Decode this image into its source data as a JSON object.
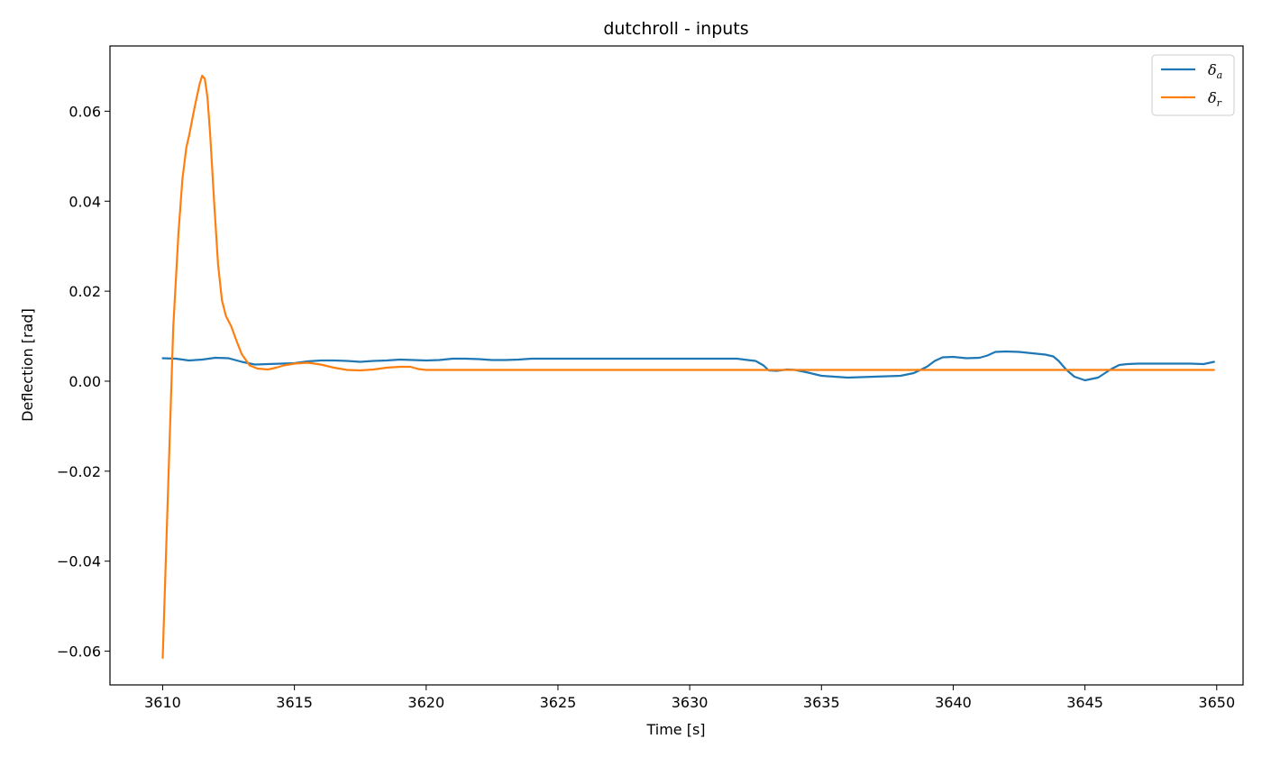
{
  "chart_data": {
    "type": "line",
    "title": "dutchroll - inputs",
    "xlabel": "Time [s]",
    "ylabel": "Deflection [rad]",
    "xlim": [
      3608,
      3651
    ],
    "ylim": [
      -0.0675,
      0.0745
    ],
    "x_ticks": [
      3610,
      3615,
      3620,
      3625,
      3630,
      3635,
      3640,
      3645,
      3650
    ],
    "x_tick_labels": [
      "3610",
      "3615",
      "3620",
      "3625",
      "3630",
      "3635",
      "3640",
      "3645",
      "3650"
    ],
    "y_ticks": [
      -0.06,
      -0.04,
      -0.02,
      0.0,
      0.02,
      0.04,
      0.06
    ],
    "y_tick_labels": [
      "−0.06",
      "−0.04",
      "−0.02",
      "0.00",
      "0.02",
      "0.04",
      "0.06"
    ],
    "grid": false,
    "legend_position": "top-right",
    "series": [
      {
        "name": "δ_a",
        "legend_main": "δ",
        "legend_sub": "a",
        "color": "#1f77b4",
        "x": [
          3610.0,
          3610.5,
          3611.0,
          3611.5,
          3612.0,
          3612.5,
          3613.0,
          3613.5,
          3614.0,
          3614.5,
          3615.0,
          3615.5,
          3616.0,
          3616.5,
          3617.0,
          3617.5,
          3618.0,
          3618.5,
          3619.0,
          3619.5,
          3620.0,
          3620.5,
          3621.0,
          3621.5,
          3622.0,
          3622.5,
          3623.0,
          3623.5,
          3624.0,
          3625.0,
          3626.0,
          3627.0,
          3628.0,
          3629.0,
          3630.0,
          3631.0,
          3631.8,
          3632.2,
          3632.5,
          3632.8,
          3633.0,
          3633.3,
          3633.7,
          3634.0,
          3634.5,
          3635.0,
          3635.5,
          3636.0,
          3636.5,
          3637.0,
          3637.5,
          3638.0,
          3638.5,
          3639.0,
          3639.3,
          3639.6,
          3640.0,
          3640.5,
          3641.0,
          3641.3,
          3641.6,
          3642.0,
          3642.5,
          3643.0,
          3643.5,
          3643.8,
          3644.0,
          3644.3,
          3644.6,
          3645.0,
          3645.5,
          3646.0,
          3646.3,
          3646.6,
          3647.0,
          3648.0,
          3649.0,
          3649.5,
          3649.9
        ],
        "y": [
          0.0051,
          0.005,
          0.0046,
          0.0048,
          0.0052,
          0.0051,
          0.0043,
          0.0037,
          0.0038,
          0.0039,
          0.004,
          0.0044,
          0.0046,
          0.0046,
          0.0045,
          0.0043,
          0.0045,
          0.0046,
          0.0048,
          0.0047,
          0.0046,
          0.0047,
          0.005,
          0.005,
          0.0049,
          0.0047,
          0.0047,
          0.0048,
          0.005,
          0.005,
          0.005,
          0.005,
          0.005,
          0.005,
          0.005,
          0.005,
          0.005,
          0.0047,
          0.0045,
          0.0035,
          0.0024,
          0.0023,
          0.0026,
          0.0025,
          0.0019,
          0.0012,
          0.001,
          0.0008,
          0.0009,
          0.001,
          0.0011,
          0.0012,
          0.0018,
          0.0032,
          0.0045,
          0.0053,
          0.0054,
          0.0051,
          0.0052,
          0.0057,
          0.0065,
          0.0066,
          0.0065,
          0.0062,
          0.0059,
          0.0055,
          0.0045,
          0.0025,
          0.001,
          0.0002,
          0.0008,
          0.0027,
          0.0036,
          0.0038,
          0.0039,
          0.0039,
          0.0039,
          0.0038,
          0.0043
        ]
      },
      {
        "name": "δ_r",
        "legend_main": "δ",
        "legend_sub": "r",
        "color": "#ff7f0e",
        "x": [
          3610.0,
          3610.2,
          3610.4,
          3610.6,
          3610.75,
          3610.9,
          3611.0,
          3611.2,
          3611.4,
          3611.5,
          3611.6,
          3611.7,
          3611.8,
          3611.95,
          3612.1,
          3612.25,
          3612.4,
          3612.6,
          3612.8,
          3613.0,
          3613.3,
          3613.6,
          3614.0,
          3614.3,
          3614.6,
          3615.0,
          3615.5,
          3616.0,
          3616.5,
          3617.0,
          3617.5,
          3618.0,
          3618.5,
          3619.0,
          3619.4,
          3619.7,
          3620.0,
          3625.0,
          3630.0,
          3635.0,
          3640.0,
          3645.0,
          3649.9
        ],
        "y": [
          -0.0615,
          -0.025,
          0.012,
          0.033,
          0.045,
          0.052,
          0.0545,
          0.0605,
          0.066,
          0.0679,
          0.0672,
          0.063,
          0.055,
          0.04,
          0.026,
          0.018,
          0.0145,
          0.0122,
          0.009,
          0.006,
          0.0035,
          0.0028,
          0.0026,
          0.003,
          0.0035,
          0.0039,
          0.0041,
          0.0037,
          0.003,
          0.0025,
          0.0024,
          0.0026,
          0.003,
          0.0032,
          0.0032,
          0.0027,
          0.0025,
          0.0025,
          0.0025,
          0.0025,
          0.0025,
          0.0025,
          0.0025
        ]
      }
    ]
  }
}
